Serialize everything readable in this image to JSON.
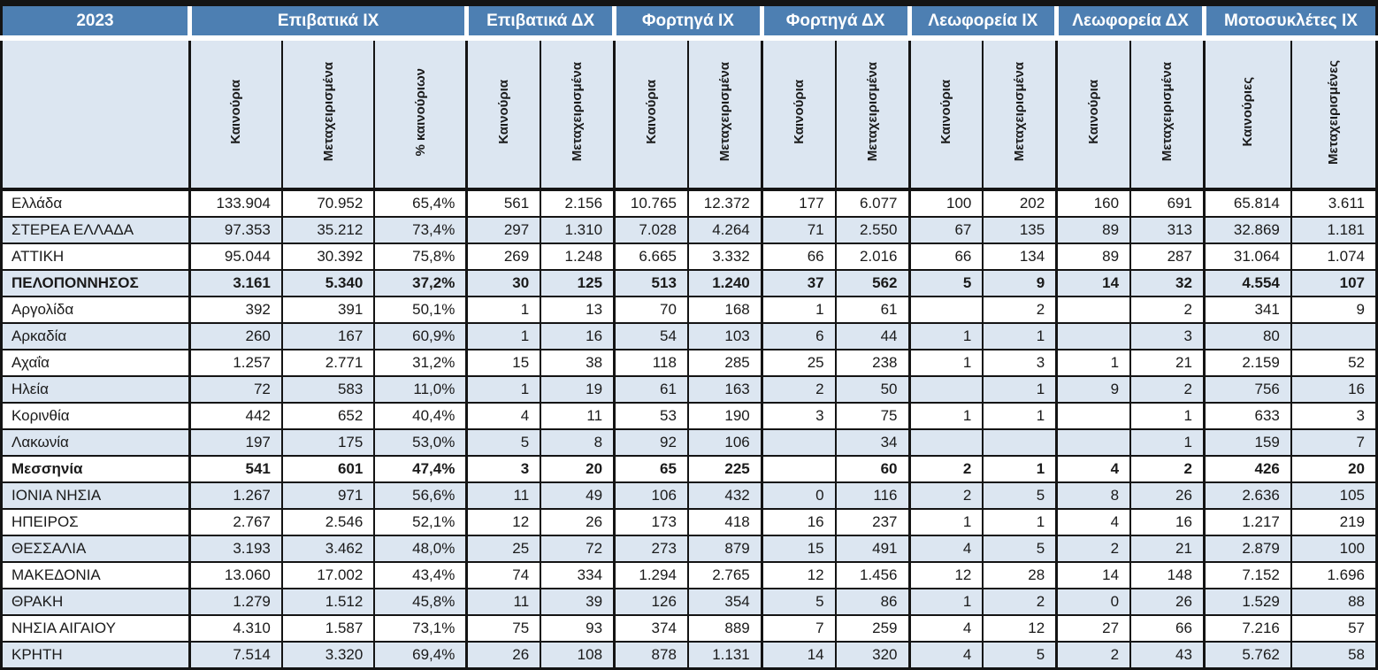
{
  "year": "2023",
  "colors": {
    "header_bg": "#4d7fb2",
    "header_text": "#ffffff",
    "stripe_bg": "#dce6f1",
    "grid_border": "#141414",
    "body_text": "#1a1a1a"
  },
  "column_groups": [
    {
      "label": "Επιβατικά ΙΧ",
      "sub": [
        "Καινούρια",
        "Μεταχειρισμένα",
        "% καινούριων"
      ]
    },
    {
      "label": "Επιβατικά ΔΧ",
      "sub": [
        "Καινούρια",
        "Μεταχειρισμένα"
      ]
    },
    {
      "label": "Φορτηγά ΙΧ",
      "sub": [
        "Καινούρια",
        "Μεταχειρισμένα"
      ]
    },
    {
      "label": "Φορτηγά ΔΧ",
      "sub": [
        "Καινούρια",
        "Μεταχειρισμένα"
      ]
    },
    {
      "label": "Λεωφορεία ΙΧ",
      "sub": [
        "Καινούρια",
        "Μεταχειρισμένα"
      ]
    },
    {
      "label": "Λεωφορεία ΔΧ",
      "sub": [
        "Καινούρια",
        "Μεταχειρισμένα"
      ]
    },
    {
      "label": "Μοτοσυκλέτες ΙΧ",
      "sub": [
        "Καινούριες",
        "Μεταχειρισμένες"
      ]
    }
  ],
  "rows": [
    {
      "region": "Ελλάδα",
      "bold": false,
      "values": [
        "133.904",
        "70.952",
        "65,4%",
        "561",
        "2.156",
        "10.765",
        "12.372",
        "177",
        "6.077",
        "100",
        "202",
        "160",
        "691",
        "65.814",
        "3.611"
      ]
    },
    {
      "region": "ΣΤΕΡΕΑ ΕΛΛΑΔΑ",
      "bold": false,
      "values": [
        "97.353",
        "35.212",
        "73,4%",
        "297",
        "1.310",
        "7.028",
        "4.264",
        "71",
        "2.550",
        "67",
        "135",
        "89",
        "313",
        "32.869",
        "1.181"
      ]
    },
    {
      "region": "ΑΤΤΙΚΗ",
      "bold": false,
      "values": [
        "95.044",
        "30.392",
        "75,8%",
        "269",
        "1.248",
        "6.665",
        "3.332",
        "66",
        "2.016",
        "66",
        "134",
        "89",
        "287",
        "31.064",
        "1.074"
      ]
    },
    {
      "region": "ΠΕΛΟΠΟΝΝΗΣΟΣ",
      "bold": true,
      "values": [
        "3.161",
        "5.340",
        "37,2%",
        "30",
        "125",
        "513",
        "1.240",
        "37",
        "562",
        "5",
        "9",
        "14",
        "32",
        "4.554",
        "107"
      ]
    },
    {
      "region": "Αργολίδα",
      "bold": false,
      "values": [
        "392",
        "391",
        "50,1%",
        "1",
        "13",
        "70",
        "168",
        "1",
        "61",
        "",
        "2",
        "",
        "2",
        "341",
        "9"
      ]
    },
    {
      "region": "Αρκαδία",
      "bold": false,
      "values": [
        "260",
        "167",
        "60,9%",
        "1",
        "16",
        "54",
        "103",
        "6",
        "44",
        "1",
        "1",
        "",
        "3",
        "80",
        ""
      ]
    },
    {
      "region": "Αχαΐα",
      "bold": false,
      "values": [
        "1.257",
        "2.771",
        "31,2%",
        "15",
        "38",
        "118",
        "285",
        "25",
        "238",
        "1",
        "3",
        "1",
        "21",
        "2.159",
        "52"
      ]
    },
    {
      "region": "Ηλεία",
      "bold": false,
      "values": [
        "72",
        "583",
        "11,0%",
        "1",
        "19",
        "61",
        "163",
        "2",
        "50",
        "",
        "1",
        "9",
        "2",
        "756",
        "16"
      ]
    },
    {
      "region": "Κορινθία",
      "bold": false,
      "values": [
        "442",
        "652",
        "40,4%",
        "4",
        "11",
        "53",
        "190",
        "3",
        "75",
        "1",
        "1",
        "",
        "1",
        "633",
        "3"
      ]
    },
    {
      "region": "Λακωνία",
      "bold": false,
      "values": [
        "197",
        "175",
        "53,0%",
        "5",
        "8",
        "92",
        "106",
        "",
        "34",
        "",
        "",
        "",
        "1",
        "159",
        "7"
      ]
    },
    {
      "region": "Μεσσηνία",
      "bold": true,
      "values": [
        "541",
        "601",
        "47,4%",
        "3",
        "20",
        "65",
        "225",
        "",
        "60",
        "2",
        "1",
        "4",
        "2",
        "426",
        "20"
      ]
    },
    {
      "region": "ΙΟΝΙΑ ΝΗΣΙΑ",
      "bold": false,
      "values": [
        "1.267",
        "971",
        "56,6%",
        "11",
        "49",
        "106",
        "432",
        "0",
        "116",
        "2",
        "5",
        "8",
        "26",
        "2.636",
        "105"
      ]
    },
    {
      "region": "ΗΠΕΙΡΟΣ",
      "bold": false,
      "values": [
        "2.767",
        "2.546",
        "52,1%",
        "12",
        "26",
        "173",
        "418",
        "16",
        "237",
        "1",
        "1",
        "4",
        "16",
        "1.217",
        "219"
      ]
    },
    {
      "region": "ΘΕΣΣΑΛΙΑ",
      "bold": false,
      "values": [
        "3.193",
        "3.462",
        "48,0%",
        "25",
        "72",
        "273",
        "879",
        "15",
        "491",
        "4",
        "5",
        "2",
        "21",
        "2.879",
        "100"
      ]
    },
    {
      "region": "ΜΑΚΕΔΟΝΙΑ",
      "bold": false,
      "values": [
        "13.060",
        "17.002",
        "43,4%",
        "74",
        "334",
        "1.294",
        "2.765",
        "12",
        "1.456",
        "12",
        "28",
        "14",
        "148",
        "7.152",
        "1.696"
      ]
    },
    {
      "region": "ΘΡΑΚΗ",
      "bold": false,
      "values": [
        "1.279",
        "1.512",
        "45,8%",
        "11",
        "39",
        "126",
        "354",
        "5",
        "86",
        "1",
        "2",
        "0",
        "26",
        "1.529",
        "88"
      ]
    },
    {
      "region": "ΝΗΣΙΑ ΑΙΓΑΙΟΥ",
      "bold": false,
      "values": [
        "4.310",
        "1.587",
        "73,1%",
        "75",
        "93",
        "374",
        "889",
        "7",
        "259",
        "4",
        "12",
        "27",
        "66",
        "7.216",
        "57"
      ]
    },
    {
      "region": "ΚΡΗΤΗ",
      "bold": false,
      "values": [
        "7.514",
        "3.320",
        "69,4%",
        "26",
        "108",
        "878",
        "1.131",
        "14",
        "320",
        "4",
        "5",
        "2",
        "43",
        "5.762",
        "58"
      ]
    }
  ]
}
